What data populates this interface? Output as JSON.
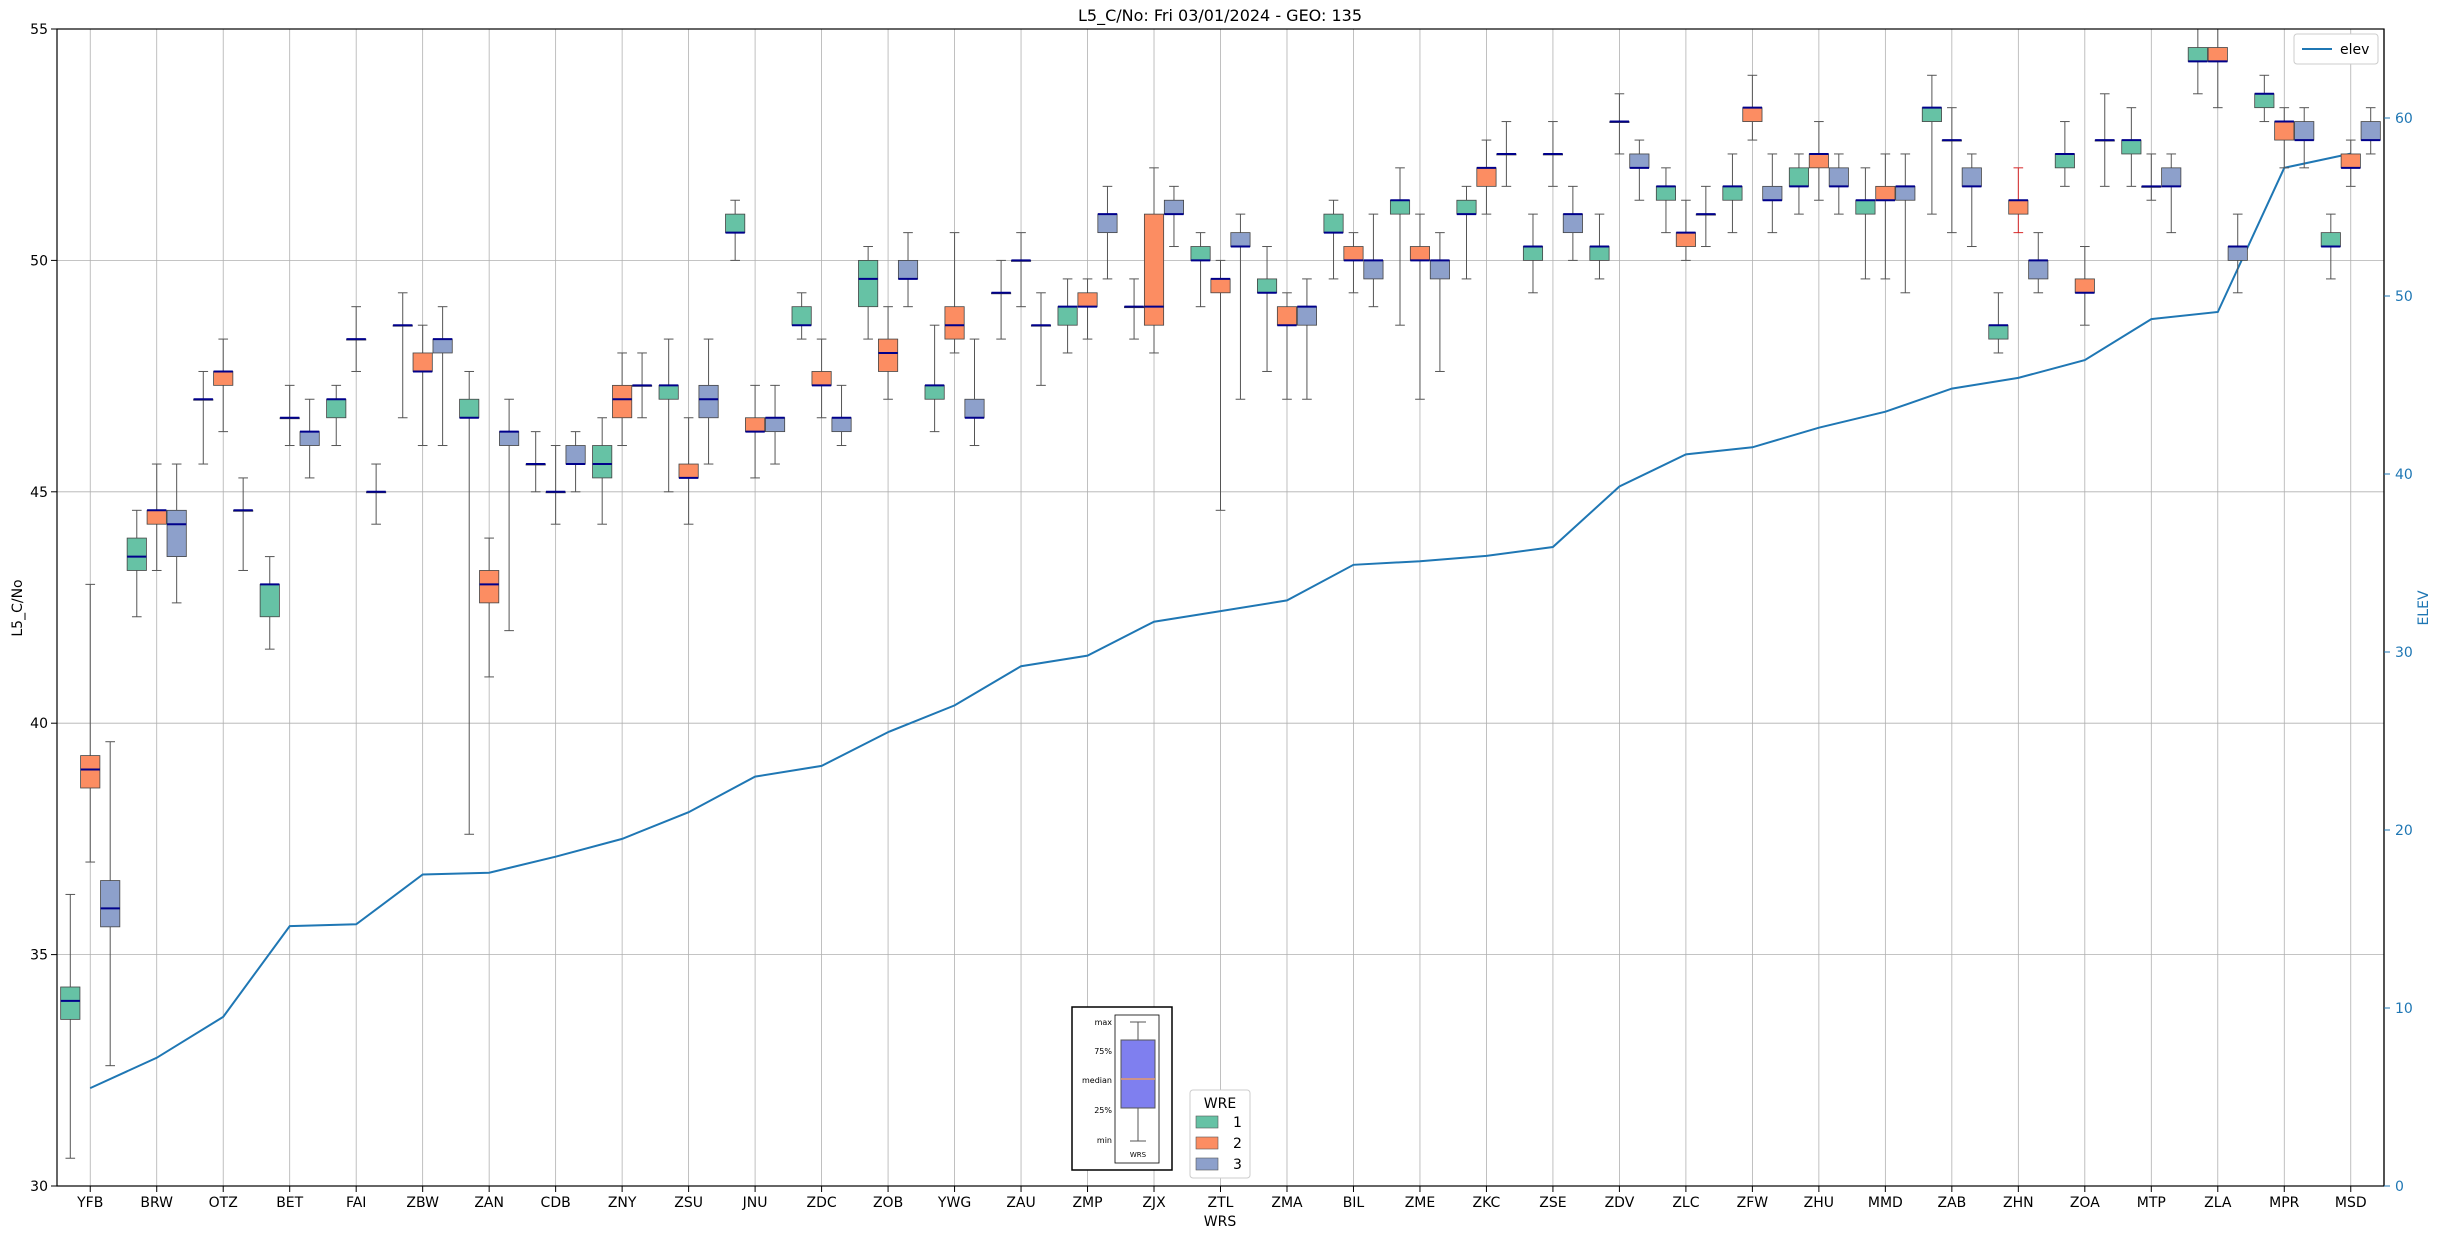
{
  "chart_data": {
    "type": "box",
    "title": "L5_C/No: Fri 03/01/2024 - GEO: 135",
    "xlabel": "WRS",
    "ylabel": "L5_C/No",
    "y2label": "ELEV",
    "ylim": [
      30,
      55
    ],
    "y2lim": [
      0,
      65
    ],
    "yticks": [
      "30",
      "35",
      "40",
      "45",
      "50",
      "55"
    ],
    "y2ticks": [
      "0",
      "10",
      "20",
      "30",
      "40",
      "50",
      "60"
    ],
    "grid": true,
    "categories": [
      "YFB",
      "BRW",
      "OTZ",
      "BET",
      "FAI",
      "ZBW",
      "ZAN",
      "CDB",
      "ZNY",
      "ZSU",
      "JNU",
      "ZDC",
      "ZOB",
      "YWG",
      "ZAU",
      "ZMP",
      "ZJX",
      "ZTL",
      "ZMA",
      "BIL",
      "ZME",
      "ZKC",
      "ZSE",
      "ZDV",
      "ZLC",
      "ZFW",
      "ZHU",
      "MMD",
      "ZAB",
      "ZHN",
      "ZOA",
      "MTP",
      "ZLA",
      "MPR",
      "MSD"
    ],
    "colors": {
      "1": "#66c2a5",
      "2": "#fc8d62",
      "3": "#8da0cb",
      "median": "#00008b",
      "line": "#1f77b4",
      "whisker": "#555555",
      "highlight_whisker": "#d62728"
    },
    "legend_line": {
      "label": "elev",
      "position": "top-right"
    },
    "legend_wre": {
      "title": "WRE",
      "entries": [
        "1",
        "2",
        "3"
      ],
      "position": "bottom-center"
    },
    "inset_legend": {
      "labels": [
        "max",
        "75%",
        "median",
        "25%",
        "min"
      ],
      "xlabel": "WRS"
    },
    "elev": [
      5.5,
      7.2,
      9.5,
      14.6,
      14.7,
      17.5,
      17.6,
      18.5,
      19.5,
      21.0,
      23.0,
      23.6,
      25.5,
      27.0,
      29.2,
      29.8,
      31.7,
      32.3,
      32.9,
      34.9,
      35.1,
      35.4,
      35.9,
      39.3,
      41.1,
      41.5,
      42.6,
      43.5,
      44.8,
      45.4,
      46.4,
      48.7,
      49.1,
      57.2,
      58.0
    ],
    "boxes": [
      {
        "wrs": "YFB",
        "wre": 1,
        "min": 30.6,
        "q1": 33.6,
        "med": 34.0,
        "q3": 34.3,
        "max": 36.3
      },
      {
        "wrs": "YFB",
        "wre": 2,
        "min": 37.0,
        "q1": 38.6,
        "med": 39.0,
        "q3": 39.3,
        "max": 43.0
      },
      {
        "wrs": "YFB",
        "wre": 3,
        "min": 32.6,
        "q1": 35.6,
        "med": 36.0,
        "q3": 36.6,
        "max": 39.6
      },
      {
        "wrs": "BRW",
        "wre": 1,
        "min": 42.3,
        "q1": 43.3,
        "med": 43.6,
        "q3": 44.0,
        "max": 44.6
      },
      {
        "wrs": "BRW",
        "wre": 2,
        "min": 43.3,
        "q1": 44.3,
        "med": 44.6,
        "q3": 44.6,
        "max": 45.6
      },
      {
        "wrs": "BRW",
        "wre": 3,
        "min": 42.6,
        "q1": 43.6,
        "med": 44.3,
        "q3": 44.6,
        "max": 45.6
      },
      {
        "wrs": "OTZ",
        "wre": 2,
        "min": 46.3,
        "q1": 47.3,
        "med": 47.6,
        "q3": 47.6,
        "max": 48.3
      },
      {
        "wrs": "OTZ",
        "wre": 1,
        "min": 45.6,
        "q1": 47.0,
        "med": 47.0,
        "q3": 47.0,
        "max": 47.6
      },
      {
        "wrs": "OTZ",
        "wre": 3,
        "min": 43.3,
        "q1": 44.6,
        "med": 44.6,
        "q3": 44.6,
        "max": 45.3
      },
      {
        "wrs": "BET",
        "wre": 1,
        "min": 41.6,
        "q1": 42.3,
        "med": 43.0,
        "q3": 43.0,
        "max": 43.6
      },
      {
        "wrs": "BET",
        "wre": 2,
        "min": 46.0,
        "q1": 46.6,
        "med": 46.6,
        "q3": 46.6,
        "max": 47.3
      },
      {
        "wrs": "BET",
        "wre": 3,
        "min": 45.3,
        "q1": 46.0,
        "med": 46.3,
        "q3": 46.3,
        "max": 47.0
      },
      {
        "wrs": "FAI",
        "wre": 1,
        "min": 46.0,
        "q1": 46.6,
        "med": 47.0,
        "q3": 47.0,
        "max": 47.3
      },
      {
        "wrs": "FAI",
        "wre": 3,
        "min": 44.3,
        "q1": 45.0,
        "med": 45.0,
        "q3": 45.0,
        "max": 45.6
      },
      {
        "wrs": "FAI",
        "wre": 2,
        "min": 47.6,
        "q1": 48.3,
        "med": 48.3,
        "q3": 48.3,
        "max": 49.0
      },
      {
        "wrs": "ZBW",
        "wre": 1,
        "min": 46.6,
        "q1": 48.6,
        "med": 48.6,
        "q3": 48.6,
        "max": 49.3
      },
      {
        "wrs": "ZBW",
        "wre": 2,
        "min": 46.0,
        "q1": 47.6,
        "med": 47.6,
        "q3": 48.0,
        "max": 48.6
      },
      {
        "wrs": "ZBW",
        "wre": 3,
        "min": 46.0,
        "q1": 48.0,
        "med": 48.3,
        "q3": 48.3,
        "max": 49.0
      },
      {
        "wrs": "ZAN",
        "wre": 1,
        "min": 37.6,
        "q1": 46.6,
        "med": 46.6,
        "q3": 47.0,
        "max": 47.6
      },
      {
        "wrs": "ZAN",
        "wre": 2,
        "min": 41.0,
        "q1": 42.6,
        "med": 43.0,
        "q3": 43.3,
        "max": 44.0
      },
      {
        "wrs": "ZAN",
        "wre": 3,
        "min": 42.0,
        "q1": 46.0,
        "med": 46.3,
        "q3": 46.3,
        "max": 47.0
      },
      {
        "wrs": "CDB",
        "wre": 1,
        "min": 45.0,
        "q1": 45.6,
        "med": 45.6,
        "q3": 45.6,
        "max": 46.3
      },
      {
        "wrs": "CDB",
        "wre": 2,
        "min": 44.3,
        "q1": 45.0,
        "med": 45.0,
        "q3": 45.0,
        "max": 46.0
      },
      {
        "wrs": "CDB",
        "wre": 3,
        "min": 45.0,
        "q1": 45.6,
        "med": 45.6,
        "q3": 46.0,
        "max": 46.3
      },
      {
        "wrs": "ZNY",
        "wre": 1,
        "min": 44.3,
        "q1": 45.3,
        "med": 45.6,
        "q3": 46.0,
        "max": 46.6
      },
      {
        "wrs": "ZNY",
        "wre": 2,
        "min": 46.0,
        "q1": 46.6,
        "med": 47.0,
        "q3": 47.3,
        "max": 48.0
      },
      {
        "wrs": "ZNY",
        "wre": 3,
        "min": 46.6,
        "q1": 47.3,
        "med": 47.3,
        "q3": 47.3,
        "max": 48.0
      },
      {
        "wrs": "ZSU",
        "wre": 1,
        "min": 45.0,
        "q1": 47.0,
        "med": 47.3,
        "q3": 47.3,
        "max": 48.3
      },
      {
        "wrs": "ZSU",
        "wre": 2,
        "min": 44.3,
        "q1": 45.3,
        "med": 45.3,
        "q3": 45.6,
        "max": 46.6
      },
      {
        "wrs": "ZSU",
        "wre": 3,
        "min": 45.6,
        "q1": 46.6,
        "med": 47.0,
        "q3": 47.3,
        "max": 48.3
      },
      {
        "wrs": "JNU",
        "wre": 1,
        "min": 50.0,
        "q1": 50.6,
        "med": 50.6,
        "q3": 51.0,
        "max": 51.3
      },
      {
        "wrs": "JNU",
        "wre": 2,
        "min": 45.3,
        "q1": 46.3,
        "med": 46.3,
        "q3": 46.6,
        "max": 47.3
      },
      {
        "wrs": "JNU",
        "wre": 3,
        "min": 45.6,
        "q1": 46.3,
        "med": 46.6,
        "q3": 46.6,
        "max": 47.3
      },
      {
        "wrs": "ZDC",
        "wre": 1,
        "min": 48.3,
        "q1": 48.6,
        "med": 48.6,
        "q3": 49.0,
        "max": 49.3
      },
      {
        "wrs": "ZDC",
        "wre": 2,
        "min": 46.6,
        "q1": 47.3,
        "med": 47.3,
        "q3": 47.6,
        "max": 48.3
      },
      {
        "wrs": "ZDC",
        "wre": 3,
        "min": 46.0,
        "q1": 46.3,
        "med": 46.6,
        "q3": 46.6,
        "max": 47.3
      },
      {
        "wrs": "ZOB",
        "wre": 1,
        "min": 48.3,
        "q1": 49.0,
        "med": 49.6,
        "q3": 50.0,
        "max": 50.3
      },
      {
        "wrs": "ZOB",
        "wre": 2,
        "min": 47.0,
        "q1": 47.6,
        "med": 48.0,
        "q3": 48.3,
        "max": 49.0
      },
      {
        "wrs": "ZOB",
        "wre": 3,
        "min": 49.0,
        "q1": 49.6,
        "med": 49.6,
        "q3": 50.0,
        "max": 50.6
      },
      {
        "wrs": "YWG",
        "wre": 1,
        "min": 46.3,
        "q1": 47.0,
        "med": 47.3,
        "q3": 47.3,
        "max": 48.6
      },
      {
        "wrs": "YWG",
        "wre": 2,
        "min": 48.0,
        "q1": 48.3,
        "med": 48.6,
        "q3": 49.0,
        "max": 50.6
      },
      {
        "wrs": "YWG",
        "wre": 3,
        "min": 46.0,
        "q1": 46.6,
        "med": 46.6,
        "q3": 47.0,
        "max": 48.3
      },
      {
        "wrs": "ZAU",
        "wre": 1,
        "min": 48.3,
        "q1": 49.3,
        "med": 49.3,
        "q3": 49.3,
        "max": 50.0
      },
      {
        "wrs": "ZAU",
        "wre": 2,
        "min": 49.0,
        "q1": 50.0,
        "med": 50.0,
        "q3": 50.0,
        "max": 50.6
      },
      {
        "wrs": "ZAU",
        "wre": 3,
        "min": 47.3,
        "q1": 48.6,
        "med": 48.6,
        "q3": 48.6,
        "max": 49.3
      },
      {
        "wrs": "ZMP",
        "wre": 1,
        "min": 48.0,
        "q1": 48.6,
        "med": 49.0,
        "q3": 49.0,
        "max": 49.6
      },
      {
        "wrs": "ZMP",
        "wre": 2,
        "min": 48.3,
        "q1": 49.0,
        "med": 49.0,
        "q3": 49.3,
        "max": 49.6
      },
      {
        "wrs": "ZMP",
        "wre": 3,
        "min": 49.6,
        "q1": 50.6,
        "med": 51.0,
        "q3": 51.0,
        "max": 51.6
      },
      {
        "wrs": "ZJX",
        "wre": 1,
        "min": 48.3,
        "q1": 49.0,
        "med": 49.0,
        "q3": 49.0,
        "max": 49.6
      },
      {
        "wrs": "ZJX",
        "wre": 2,
        "min": 48.0,
        "q1": 48.6,
        "med": 49.0,
        "q3": 51.0,
        "max": 52.0
      },
      {
        "wrs": "ZJX",
        "wre": 3,
        "min": 50.3,
        "q1": 51.0,
        "med": 51.0,
        "q3": 51.3,
        "max": 51.6
      },
      {
        "wrs": "ZTL",
        "wre": 1,
        "min": 49.0,
        "q1": 50.0,
        "med": 50.0,
        "q3": 50.3,
        "max": 50.6
      },
      {
        "wrs": "ZTL",
        "wre": 2,
        "min": 44.6,
        "q1": 49.3,
        "med": 49.6,
        "q3": 49.6,
        "max": 50.0
      },
      {
        "wrs": "ZTL",
        "wre": 3,
        "min": 47.0,
        "q1": 50.3,
        "med": 50.3,
        "q3": 50.6,
        "max": 51.0
      },
      {
        "wrs": "ZMA",
        "wre": 1,
        "min": 47.6,
        "q1": 49.3,
        "med": 49.3,
        "q3": 49.6,
        "max": 50.3
      },
      {
        "wrs": "ZMA",
        "wre": 2,
        "min": 47.0,
        "q1": 48.6,
        "med": 48.6,
        "q3": 49.0,
        "max": 49.3
      },
      {
        "wrs": "ZMA",
        "wre": 3,
        "min": 47.0,
        "q1": 48.6,
        "med": 49.0,
        "q3": 49.0,
        "max": 49.6
      },
      {
        "wrs": "BIL",
        "wre": 1,
        "min": 49.6,
        "q1": 50.6,
        "med": 50.6,
        "q3": 51.0,
        "max": 51.3
      },
      {
        "wrs": "BIL",
        "wre": 2,
        "min": 49.3,
        "q1": 50.0,
        "med": 50.0,
        "q3": 50.3,
        "max": 50.6
      },
      {
        "wrs": "BIL",
        "wre": 3,
        "min": 49.0,
        "q1": 49.6,
        "med": 50.0,
        "q3": 50.0,
        "max": 51.0
      },
      {
        "wrs": "ZME",
        "wre": 1,
        "min": 48.6,
        "q1": 51.0,
        "med": 51.3,
        "q3": 51.3,
        "max": 52.0
      },
      {
        "wrs": "ZME",
        "wre": 2,
        "min": 47.0,
        "q1": 50.0,
        "med": 50.0,
        "q3": 50.3,
        "max": 51.0
      },
      {
        "wrs": "ZME",
        "wre": 3,
        "min": 47.6,
        "q1": 49.6,
        "med": 50.0,
        "q3": 50.0,
        "max": 50.6
      },
      {
        "wrs": "ZKC",
        "wre": 1,
        "min": 49.6,
        "q1": 51.0,
        "med": 51.0,
        "q3": 51.3,
        "max": 51.6
      },
      {
        "wrs": "ZKC",
        "wre": 2,
        "min": 51.0,
        "q1": 51.6,
        "med": 52.0,
        "q3": 52.0,
        "max": 52.6
      },
      {
        "wrs": "ZKC",
        "wre": 3,
        "min": 51.6,
        "q1": 52.3,
        "med": 52.3,
        "q3": 52.3,
        "max": 53.0
      },
      {
        "wrs": "ZSE",
        "wre": 1,
        "min": 49.3,
        "q1": 50.0,
        "med": 50.3,
        "q3": 50.3,
        "max": 51.0
      },
      {
        "wrs": "ZSE",
        "wre": 2,
        "min": 51.6,
        "q1": 52.3,
        "med": 52.3,
        "q3": 52.3,
        "max": 53.0
      },
      {
        "wrs": "ZSE",
        "wre": 3,
        "min": 50.0,
        "q1": 50.6,
        "med": 51.0,
        "q3": 51.0,
        "max": 51.6
      },
      {
        "wrs": "ZDV",
        "wre": 1,
        "min": 49.6,
        "q1": 50.0,
        "med": 50.3,
        "q3": 50.3,
        "max": 51.0
      },
      {
        "wrs": "ZDV",
        "wre": 2,
        "min": 52.3,
        "q1": 53.0,
        "med": 53.0,
        "q3": 53.0,
        "max": 53.6
      },
      {
        "wrs": "ZDV",
        "wre": 3,
        "min": 51.3,
        "q1": 52.0,
        "med": 52.0,
        "q3": 52.3,
        "max": 52.6
      },
      {
        "wrs": "ZLC",
        "wre": 1,
        "min": 50.6,
        "q1": 51.3,
        "med": 51.6,
        "q3": 51.6,
        "max": 52.0
      },
      {
        "wrs": "ZLC",
        "wre": 2,
        "min": 50.0,
        "q1": 50.3,
        "med": 50.6,
        "q3": 50.6,
        "max": 51.3
      },
      {
        "wrs": "ZLC",
        "wre": 3,
        "min": 50.3,
        "q1": 51.0,
        "med": 51.0,
        "q3": 51.0,
        "max": 51.6
      },
      {
        "wrs": "ZFW",
        "wre": 1,
        "min": 50.6,
        "q1": 51.3,
        "med": 51.6,
        "q3": 51.6,
        "max": 52.3
      },
      {
        "wrs": "ZFW",
        "wre": 2,
        "min": 52.6,
        "q1": 53.0,
        "med": 53.3,
        "q3": 53.3,
        "max": 54.0
      },
      {
        "wrs": "ZFW",
        "wre": 3,
        "min": 50.6,
        "q1": 51.3,
        "med": 51.3,
        "q3": 51.6,
        "max": 52.3
      },
      {
        "wrs": "ZHU",
        "wre": 1,
        "min": 51.0,
        "q1": 51.6,
        "med": 51.6,
        "q3": 52.0,
        "max": 52.3
      },
      {
        "wrs": "ZHU",
        "wre": 2,
        "min": 51.3,
        "q1": 52.0,
        "med": 52.3,
        "q3": 52.3,
        "max": 53.0
      },
      {
        "wrs": "ZHU",
        "wre": 3,
        "min": 51.0,
        "q1": 51.6,
        "med": 51.6,
        "q3": 52.0,
        "max": 52.3
      },
      {
        "wrs": "MMD",
        "wre": 1,
        "min": 49.6,
        "q1": 51.0,
        "med": 51.3,
        "q3": 51.3,
        "max": 52.0
      },
      {
        "wrs": "MMD",
        "wre": 2,
        "min": 49.6,
        "q1": 51.3,
        "med": 51.3,
        "q3": 51.6,
        "max": 52.3
      },
      {
        "wrs": "MMD",
        "wre": 3,
        "min": 49.3,
        "q1": 51.3,
        "med": 51.6,
        "q3": 51.6,
        "max": 52.3
      },
      {
        "wrs": "ZAB",
        "wre": 1,
        "min": 51.0,
        "q1": 53.0,
        "med": 53.3,
        "q3": 53.3,
        "max": 54.0
      },
      {
        "wrs": "ZAB",
        "wre": 2,
        "min": 50.6,
        "q1": 52.6,
        "med": 52.6,
        "q3": 52.6,
        "max": 53.3
      },
      {
        "wrs": "ZAB",
        "wre": 3,
        "min": 50.3,
        "q1": 51.6,
        "med": 51.6,
        "q3": 52.0,
        "max": 52.3
      },
      {
        "wrs": "ZHN",
        "wre": 1,
        "min": 48.0,
        "q1": 48.3,
        "med": 48.6,
        "q3": 48.6,
        "max": 49.3
      },
      {
        "wrs": "ZHN",
        "wre": 2,
        "min": 50.6,
        "q1": 51.0,
        "med": 51.3,
        "q3": 51.3,
        "max": 52.0
      },
      {
        "wrs": "ZHN",
        "wre": 3,
        "min": 49.3,
        "q1": 49.6,
        "med": 50.0,
        "q3": 50.0,
        "max": 50.6
      },
      {
        "wrs": "ZOA",
        "wre": 1,
        "min": 51.6,
        "q1": 52.0,
        "med": 52.3,
        "q3": 52.3,
        "max": 53.0
      },
      {
        "wrs": "ZOA",
        "wre": 2,
        "min": 48.6,
        "q1": 49.3,
        "med": 49.3,
        "q3": 49.6,
        "max": 50.3
      },
      {
        "wrs": "ZOA",
        "wre": 3,
        "min": 51.6,
        "q1": 52.6,
        "med": 52.6,
        "q3": 52.6,
        "max": 53.6
      },
      {
        "wrs": "MTP",
        "wre": 1,
        "min": 51.6,
        "q1": 52.3,
        "med": 52.6,
        "q3": 52.6,
        "max": 53.3
      },
      {
        "wrs": "MTP",
        "wre": 2,
        "min": 51.3,
        "q1": 51.6,
        "med": 51.6,
        "q3": 51.6,
        "max": 52.3
      },
      {
        "wrs": "MTP",
        "wre": 3,
        "min": 50.6,
        "q1": 51.6,
        "med": 51.6,
        "q3": 52.0,
        "max": 52.3
      },
      {
        "wrs": "ZLA",
        "wre": 1,
        "min": 53.6,
        "q1": 54.3,
        "med": 54.3,
        "q3": 54.6,
        "max": 55.0
      },
      {
        "wrs": "ZLA",
        "wre": 2,
        "min": 53.3,
        "q1": 54.3,
        "med": 54.3,
        "q3": 54.6,
        "max": 55.0
      },
      {
        "wrs": "ZLA",
        "wre": 3,
        "min": 49.3,
        "q1": 50.0,
        "med": 50.3,
        "q3": 50.3,
        "max": 51.0
      },
      {
        "wrs": "MPR",
        "wre": 1,
        "min": 53.0,
        "q1": 53.3,
        "med": 53.6,
        "q3": 53.6,
        "max": 54.0
      },
      {
        "wrs": "MPR",
        "wre": 2,
        "min": 52.0,
        "q1": 52.6,
        "med": 53.0,
        "q3": 53.0,
        "max": 53.3
      },
      {
        "wrs": "MPR",
        "wre": 3,
        "min": 52.0,
        "q1": 52.6,
        "med": 52.6,
        "q3": 53.0,
        "max": 53.3
      },
      {
        "wrs": "MSD",
        "wre": 1,
        "min": 49.6,
        "q1": 50.3,
        "med": 50.3,
        "q3": 50.6,
        "max": 51.0
      },
      {
        "wrs": "MSD",
        "wre": 2,
        "min": 51.6,
        "q1": 52.0,
        "med": 52.0,
        "q3": 52.3,
        "max": 52.6
      },
      {
        "wrs": "MSD",
        "wre": 3,
        "min": 52.3,
        "q1": 52.6,
        "med": 52.6,
        "q3": 53.0,
        "max": 53.3
      }
    ]
  }
}
